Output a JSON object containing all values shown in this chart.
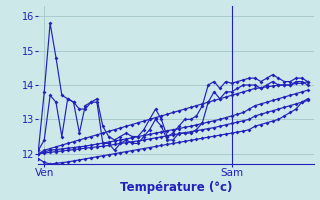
{
  "bg_color": "#cce8e8",
  "grid_color": "#aacccc",
  "line_color": "#2222bb",
  "xlabel": "Température (°c)",
  "ylim": [
    11.7,
    16.3
  ],
  "xlim": [
    0,
    47
  ],
  "yticks": [
    12,
    13,
    14,
    15,
    16
  ],
  "xtick_positions": [
    1,
    33
  ],
  "xtick_labels": [
    "Ven",
    "Sam"
  ],
  "vline_x": 33,
  "series": [
    [
      12.1,
      13.8,
      15.8,
      14.8,
      13.7,
      13.6,
      13.5,
      13.3,
      13.3,
      13.5,
      13.6,
      12.8,
      12.5,
      12.4,
      12.5,
      12.6,
      12.5,
      12.5,
      12.7,
      13.0,
      13.3,
      13.0,
      12.5,
      12.6,
      12.8,
      13.0,
      13.0,
      13.1,
      13.4,
      14.0,
      14.1,
      13.9,
      14.1,
      14.05,
      14.1,
      14.15,
      14.2,
      14.2,
      14.1,
      14.2,
      14.3,
      14.2,
      14.1,
      14.1,
      14.2,
      14.2,
      14.1
    ],
    [
      12.1,
      12.4,
      13.7,
      13.5,
      12.5,
      13.6,
      13.5,
      12.6,
      13.4,
      13.5,
      13.5,
      12.3,
      12.3,
      12.1,
      12.3,
      12.4,
      12.3,
      12.3,
      12.5,
      12.7,
      13.0,
      12.8,
      12.4,
      12.4,
      12.6,
      12.6,
      12.6,
      12.7,
      12.9,
      13.5,
      13.8,
      13.6,
      13.8,
      13.8,
      13.9,
      14.0,
      14.0,
      14.0,
      13.9,
      14.0,
      14.1,
      14.0,
      14.0,
      14.0,
      14.1,
      14.1,
      14.0
    ],
    [
      12.0,
      12.1,
      12.15,
      12.2,
      12.25,
      12.3,
      12.35,
      12.4,
      12.45,
      12.5,
      12.55,
      12.6,
      12.65,
      12.7,
      12.75,
      12.8,
      12.85,
      12.9,
      12.95,
      13.0,
      13.05,
      13.1,
      13.15,
      13.2,
      13.25,
      13.3,
      13.35,
      13.4,
      13.45,
      13.5,
      13.55,
      13.6,
      13.65,
      13.7,
      13.75,
      13.8,
      13.85,
      13.9,
      13.92,
      13.95,
      13.97,
      14.0,
      14.0,
      14.0,
      14.05,
      14.05,
      14.1
    ],
    [
      12.0,
      12.05,
      12.1,
      12.12,
      12.14,
      12.16,
      12.18,
      12.2,
      12.22,
      12.25,
      12.28,
      12.31,
      12.34,
      12.37,
      12.4,
      12.43,
      12.46,
      12.5,
      12.53,
      12.56,
      12.6,
      12.63,
      12.67,
      12.7,
      12.73,
      12.77,
      12.8,
      12.84,
      12.88,
      12.92,
      12.96,
      13.0,
      13.05,
      13.1,
      13.15,
      13.2,
      13.3,
      13.4,
      13.45,
      13.5,
      13.55,
      13.6,
      13.65,
      13.7,
      13.75,
      13.8,
      13.85
    ],
    [
      12.0,
      12.02,
      12.04,
      12.06,
      12.08,
      12.1,
      12.12,
      12.14,
      12.16,
      12.18,
      12.2,
      12.22,
      12.24,
      12.27,
      12.3,
      12.32,
      12.35,
      12.37,
      12.4,
      12.43,
      12.46,
      12.49,
      12.52,
      12.55,
      12.58,
      12.61,
      12.64,
      12.67,
      12.7,
      12.73,
      12.76,
      12.8,
      12.84,
      12.88,
      12.92,
      12.96,
      13.0,
      13.1,
      13.15,
      13.2,
      13.25,
      13.3,
      13.35,
      13.4,
      13.45,
      13.5,
      13.55
    ],
    [
      11.85,
      11.75,
      11.7,
      11.72,
      11.74,
      11.76,
      11.79,
      11.82,
      11.85,
      11.88,
      11.91,
      11.94,
      11.97,
      12.0,
      12.03,
      12.06,
      12.09,
      12.12,
      12.15,
      12.18,
      12.21,
      12.24,
      12.27,
      12.3,
      12.33,
      12.36,
      12.39,
      12.42,
      12.45,
      12.48,
      12.51,
      12.54,
      12.57,
      12.6,
      12.63,
      12.66,
      12.7,
      12.8,
      12.85,
      12.9,
      12.95,
      13.0,
      13.1,
      13.2,
      13.3,
      13.5,
      13.6
    ]
  ]
}
